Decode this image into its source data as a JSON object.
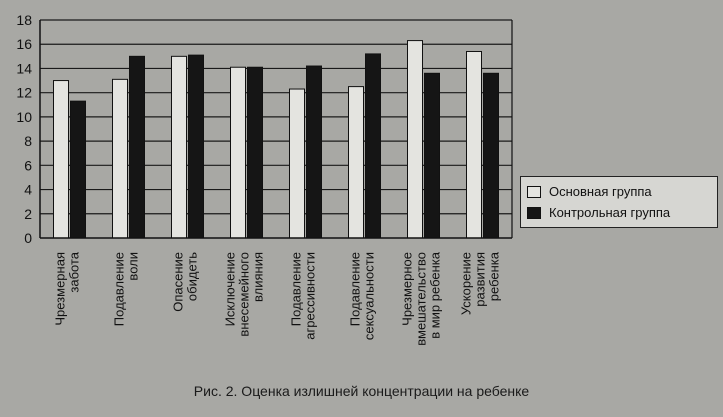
{
  "chart_data": {
    "type": "bar",
    "title": "",
    "xlabel": "",
    "ylabel": "",
    "ylim": [
      0,
      18
    ],
    "yticks": [
      0,
      2,
      4,
      6,
      8,
      10,
      12,
      14,
      16,
      18
    ],
    "grid": true,
    "legend_position": "right",
    "categories": [
      [
        "Чрезмерная",
        "забота"
      ],
      [
        "Подавление",
        "воли"
      ],
      [
        "Опасение",
        "обидеть"
      ],
      [
        "Исключение",
        "внесемейного",
        "влияния"
      ],
      [
        "Подавление",
        "агрессивности"
      ],
      [
        "Подавление",
        "сексуальности"
      ],
      [
        "Чрезмерное",
        "вмешательство",
        "в мир ребенка"
      ],
      [
        "Ускорение",
        "развития",
        "ребенка"
      ]
    ],
    "series": [
      {
        "name": "Основная группа",
        "values": [
          13,
          13.1,
          15,
          14.1,
          12.3,
          12.5,
          16.3,
          15.4
        ],
        "color": "#e4e4e0"
      },
      {
        "name": "Контрольная группа",
        "values": [
          11.3,
          15,
          15.1,
          14.1,
          14.2,
          15.2,
          13.6,
          13.6
        ],
        "color": "#151515"
      }
    ]
  },
  "caption": "Рис. 2. Оценка излишней концентрации на ребенке"
}
